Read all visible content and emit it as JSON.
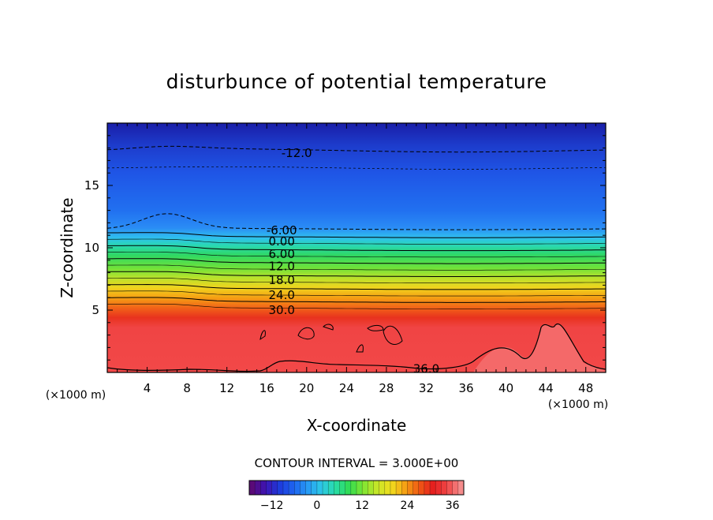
{
  "chart_data": {
    "type": "contour",
    "title": "disturbunce of potential temperature",
    "xlabel": "X-coordinate",
    "ylabel": "Z-coordinate",
    "x_units": "(×1000 m)",
    "xlim": [
      0,
      50
    ],
    "ylim": [
      0,
      20
    ],
    "x_ticks": [
      4,
      8,
      12,
      16,
      20,
      24,
      28,
      32,
      36,
      40,
      44,
      48
    ],
    "y_ticks": [
      5,
      10,
      15
    ],
    "contour_interval_text": "CONTOUR INTERVAL = 3.000E+00",
    "contour_labels": [
      {
        "text": "-12.0",
        "x": 19,
        "z": 17.6
      },
      {
        "text": "-6.00",
        "x": 17.5,
        "z": 11.4
      },
      {
        "text": "0.00",
        "x": 17.5,
        "z": 10.5
      },
      {
        "text": "6.00",
        "x": 17.5,
        "z": 9.5
      },
      {
        "text": "12.0",
        "x": 17.5,
        "z": 8.5
      },
      {
        "text": "18.0",
        "x": 17.5,
        "z": 7.4
      },
      {
        "text": "24.0",
        "x": 17.5,
        "z": 6.2
      },
      {
        "text": "30.0",
        "x": 17.5,
        "z": 5.0
      },
      {
        "text": "36.0",
        "x": 32,
        "z": 0.3
      }
    ],
    "colorbar": {
      "min": -18,
      "max": 39,
      "ticks": [
        -12,
        0,
        12,
        24,
        36
      ],
      "colors": [
        "#5a0a78",
        "#3c14b4",
        "#1e3cdc",
        "#1e64f0",
        "#289bf5",
        "#2dc8e6",
        "#28dca5",
        "#32dc50",
        "#82e632",
        "#c8e628",
        "#f0dc1e",
        "#f5a014",
        "#f05a14",
        "#e61e1e",
        "#f04646",
        "#f58c8c"
      ]
    },
    "grid": false
  }
}
